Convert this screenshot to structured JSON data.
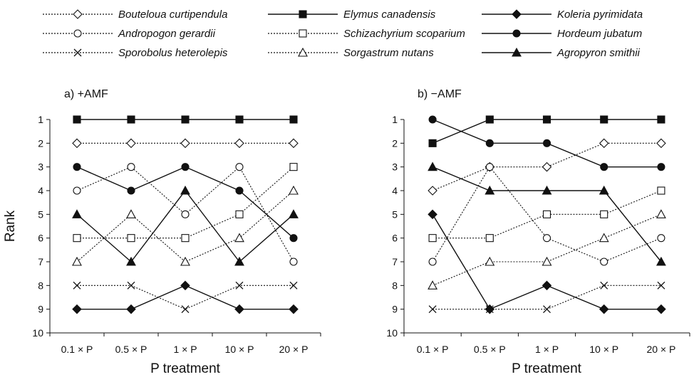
{
  "chart_data": [
    {
      "type": "line",
      "panel_label": "a) +AMF",
      "xlabel": "P treatment",
      "ylabel": "Rank",
      "categories": [
        "0.1 × P",
        "0.5 × P",
        "1 × P",
        "10 × P",
        "20 × P"
      ],
      "y_ticks": [
        "1",
        "2",
        "3",
        "4",
        "5",
        "6",
        "7",
        "8",
        "9",
        "10"
      ],
      "ylim": [
        1,
        10
      ],
      "y_inverted": true,
      "grid": false,
      "series": [
        {
          "name": "Bouteloua curtipendula",
          "values": [
            2,
            2,
            2,
            2,
            2
          ]
        },
        {
          "name": "Andropogon gerardii",
          "values": [
            4,
            3,
            5,
            3,
            7
          ]
        },
        {
          "name": "Sporobolus heterolepis",
          "values": [
            8,
            8,
            9,
            8,
            8
          ]
        },
        {
          "name": "Elymus canadensis",
          "values": [
            1,
            1,
            1,
            1,
            1
          ]
        },
        {
          "name": "Schizachyrium scoparium",
          "values": [
            6,
            6,
            6,
            5,
            3
          ]
        },
        {
          "name": "Sorgastrum nutans",
          "values": [
            7,
            5,
            7,
            6,
            4
          ]
        },
        {
          "name": "Koleria pyrimidata",
          "values": [
            9,
            9,
            8,
            9,
            9
          ]
        },
        {
          "name": "Hordeum jubatum",
          "values": [
            3,
            4,
            3,
            4,
            6
          ]
        },
        {
          "name": "Agropyron smithii",
          "values": [
            5,
            7,
            4,
            7,
            5
          ]
        }
      ]
    },
    {
      "type": "line",
      "panel_label": "b) −AMF",
      "xlabel": "P treatment",
      "ylabel": "",
      "categories": [
        "0.1 × P",
        "0.5 × P",
        "1 × P",
        "10 × P",
        "20 × P"
      ],
      "y_ticks": [
        "1",
        "2",
        "3",
        "4",
        "5",
        "6",
        "7",
        "8",
        "9",
        "10"
      ],
      "ylim": [
        1,
        10
      ],
      "y_inverted": true,
      "grid": false,
      "series": [
        {
          "name": "Bouteloua curtipendula",
          "values": [
            4,
            3,
            3,
            2,
            2
          ]
        },
        {
          "name": "Andropogon gerardii",
          "values": [
            7,
            3,
            6,
            7,
            6
          ]
        },
        {
          "name": "Sporobolus heterolepis",
          "values": [
            9,
            9,
            9,
            8,
            8
          ]
        },
        {
          "name": "Elymus canadensis",
          "values": [
            2,
            1,
            1,
            1,
            1
          ]
        },
        {
          "name": "Schizachyrium scoparium",
          "values": [
            6,
            6,
            5,
            5,
            4
          ]
        },
        {
          "name": "Sorgastrum nutans",
          "values": [
            8,
            7,
            7,
            6,
            5
          ]
        },
        {
          "name": "Koleria pyrimidata",
          "values": [
            5,
            9,
            8,
            9,
            9
          ]
        },
        {
          "name": "Hordeum jubatum",
          "values": [
            1,
            2,
            2,
            3,
            3
          ]
        },
        {
          "name": "Agropyron smithii",
          "values": [
            3,
            4,
            4,
            4,
            7
          ]
        }
      ]
    }
  ],
  "legend": {
    "placement": "top",
    "entries": [
      {
        "label": "Bouteloua curtipendula",
        "marker": "diamond-open",
        "line": "dotted"
      },
      {
        "label": "Andropogon gerardii",
        "marker": "circle-open",
        "line": "dotted"
      },
      {
        "label": "Sporobolus heterolepis",
        "marker": "x",
        "line": "dotted"
      },
      {
        "label": "Elymus canadensis",
        "marker": "square-filled",
        "line": "solid"
      },
      {
        "label": "Schizachyrium scoparium",
        "marker": "square-open",
        "line": "dotted"
      },
      {
        "label": "Sorgastrum nutans",
        "marker": "triangle-open",
        "line": "dotted"
      },
      {
        "label": "Koleria pyrimidata",
        "marker": "diamond-filled",
        "line": "solid"
      },
      {
        "label": "Hordeum jubatum",
        "marker": "circle-filled",
        "line": "solid"
      },
      {
        "label": "Agropyron smithii",
        "marker": "triangle-filled",
        "line": "solid"
      }
    ]
  },
  "colors": {
    "ink": "#111111",
    "background": "#ffffff"
  }
}
